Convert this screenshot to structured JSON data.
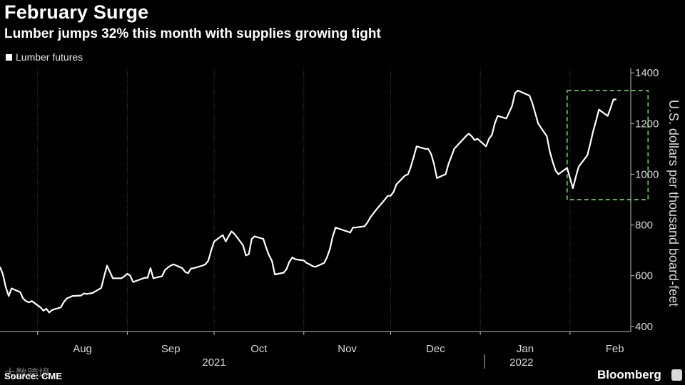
{
  "header": {
    "title": "February Surge",
    "subtitle": "Lumber jumps 32% this month with supplies growing tight"
  },
  "legend": {
    "label": "Lumber futures"
  },
  "footer": {
    "source": "Source: CME",
    "brand": "Bloomberg",
    "watermark": "大数跨境"
  },
  "chart_data": {
    "type": "line",
    "title": "February Surge",
    "subtitle": "Lumber jumps 32% this month with supplies growing tight",
    "ylabel": "U.S. dollars per thousand board-feet",
    "ylim": [
      380,
      1420
    ],
    "yticks": [
      400,
      600,
      800,
      1000,
      1200,
      1400
    ],
    "y_axis_side": "right",
    "grid": "vertical",
    "legend_position": "top-left",
    "line_color": "#ffffff",
    "highlight_box": {
      "x_start": "2022-01-31",
      "x_end": "2022-02-28",
      "y_min": 900,
      "y_max": 1330,
      "color": "#55b548",
      "style": "dashed"
    },
    "x_months": [
      {
        "label": "Aug",
        "start": "2021-08-01"
      },
      {
        "label": "Sep",
        "start": "2021-09-01"
      },
      {
        "label": "Oct",
        "start": "2021-10-01"
      },
      {
        "label": "Nov",
        "start": "2021-11-01"
      },
      {
        "label": "Dec",
        "start": "2021-12-01"
      },
      {
        "label": "Jan",
        "start": "2022-01-01"
      },
      {
        "label": "Feb",
        "start": "2022-02-01"
      }
    ],
    "x_years": [
      {
        "label": "2021",
        "center": "2021-10-01"
      },
      {
        "label": "2022",
        "center": "2022-02-01"
      }
    ],
    "series": [
      {
        "name": "Lumber futures",
        "x": [
          "2021-07-19",
          "2021-07-20",
          "2021-07-21",
          "2021-07-22",
          "2021-07-23",
          "2021-07-26",
          "2021-07-27",
          "2021-07-28",
          "2021-07-29",
          "2021-07-30",
          "2021-08-02",
          "2021-08-03",
          "2021-08-04",
          "2021-08-05",
          "2021-08-06",
          "2021-08-09",
          "2021-08-10",
          "2021-08-11",
          "2021-08-12",
          "2021-08-13",
          "2021-08-16",
          "2021-08-17",
          "2021-08-18",
          "2021-08-19",
          "2021-08-20",
          "2021-08-23",
          "2021-08-24",
          "2021-08-25",
          "2021-08-26",
          "2021-08-27",
          "2021-08-30",
          "2021-08-31",
          "2021-09-01",
          "2021-09-02",
          "2021-09-03",
          "2021-09-07",
          "2021-09-08",
          "2021-09-09",
          "2021-09-10",
          "2021-09-13",
          "2021-09-14",
          "2021-09-15",
          "2021-09-16",
          "2021-09-17",
          "2021-09-20",
          "2021-09-21",
          "2021-09-22",
          "2021-09-23",
          "2021-09-24",
          "2021-09-27",
          "2021-09-28",
          "2021-09-29",
          "2021-09-30",
          "2021-10-01",
          "2021-10-04",
          "2021-10-05",
          "2021-10-06",
          "2021-10-07",
          "2021-10-08",
          "2021-10-11",
          "2021-10-12",
          "2021-10-13",
          "2021-10-14",
          "2021-10-15",
          "2021-10-18",
          "2021-10-19",
          "2021-10-20",
          "2021-10-21",
          "2021-10-22",
          "2021-10-25",
          "2021-10-26",
          "2021-10-27",
          "2021-10-28",
          "2021-10-29",
          "2021-11-01",
          "2021-11-02",
          "2021-11-03",
          "2021-11-04",
          "2021-11-05",
          "2021-11-08",
          "2021-11-09",
          "2021-11-10",
          "2021-11-11",
          "2021-11-12",
          "2021-11-15",
          "2021-11-16",
          "2021-11-17",
          "2021-11-18",
          "2021-11-19",
          "2021-11-22",
          "2021-11-23",
          "2021-11-24",
          "2021-11-26",
          "2021-11-29",
          "2021-11-30",
          "2021-12-01",
          "2021-12-02",
          "2021-12-03",
          "2021-12-06",
          "2021-12-07",
          "2021-12-08",
          "2021-12-09",
          "2021-12-10",
          "2021-12-13",
          "2021-12-14",
          "2021-12-15",
          "2021-12-16",
          "2021-12-17",
          "2021-12-20",
          "2021-12-21",
          "2021-12-22",
          "2021-12-23",
          "2021-12-27",
          "2021-12-28",
          "2021-12-29",
          "2021-12-30",
          "2021-12-31",
          "2022-01-03",
          "2022-01-04",
          "2022-01-05",
          "2022-01-06",
          "2022-01-07",
          "2022-01-10",
          "2022-01-11",
          "2022-01-12",
          "2022-01-13",
          "2022-01-14",
          "2022-01-18",
          "2022-01-19",
          "2022-01-20",
          "2022-01-21",
          "2022-01-24",
          "2022-01-25",
          "2022-01-26",
          "2022-01-27",
          "2022-01-28",
          "2022-01-31",
          "2022-02-01",
          "2022-02-02",
          "2022-02-03",
          "2022-02-04",
          "2022-02-07",
          "2022-02-08",
          "2022-02-09",
          "2022-02-10",
          "2022-02-11",
          "2022-02-14",
          "2022-02-15",
          "2022-02-16",
          "2022-02-17"
        ],
        "values": [
          635,
          605,
          555,
          520,
          550,
          535,
          510,
          500,
          495,
          500,
          475,
          462,
          470,
          455,
          465,
          475,
          495,
          510,
          515,
          520,
          522,
          530,
          528,
          530,
          532,
          552,
          598,
          640,
          615,
          590,
          590,
          598,
          608,
          600,
          575,
          592,
          592,
          630,
          590,
          598,
          622,
          632,
          640,
          645,
          630,
          615,
          610,
          628,
          630,
          640,
          645,
          660,
          700,
          735,
          760,
          735,
          755,
          775,
          765,
          720,
          680,
          685,
          745,
          755,
          745,
          710,
          680,
          658,
          605,
          612,
          625,
          655,
          672,
          665,
          660,
          650,
          645,
          638,
          635,
          650,
          672,
          705,
          755,
          790,
          778,
          775,
          770,
          790,
          790,
          795,
          810,
          830,
          860,
          900,
          915,
          915,
          930,
          960,
          995,
          1000,
          1030,
          1070,
          1110,
          1100,
          1100,
          1080,
          1040,
          985,
          1000,
          1040,
          1070,
          1100,
          1150,
          1160,
          1150,
          1135,
          1140,
          1110,
          1140,
          1155,
          1200,
          1230,
          1220,
          1245,
          1270,
          1320,
          1330,
          1310,
          1280,
          1240,
          1200,
          1150,
          1090,
          1050,
          1015,
          1000,
          1025,
          985,
          945,
          990,
          1030,
          1075,
          1120,
          1170,
          1210,
          1255,
          1230,
          1260,
          1295,
          1295
        ]
      }
    ]
  }
}
